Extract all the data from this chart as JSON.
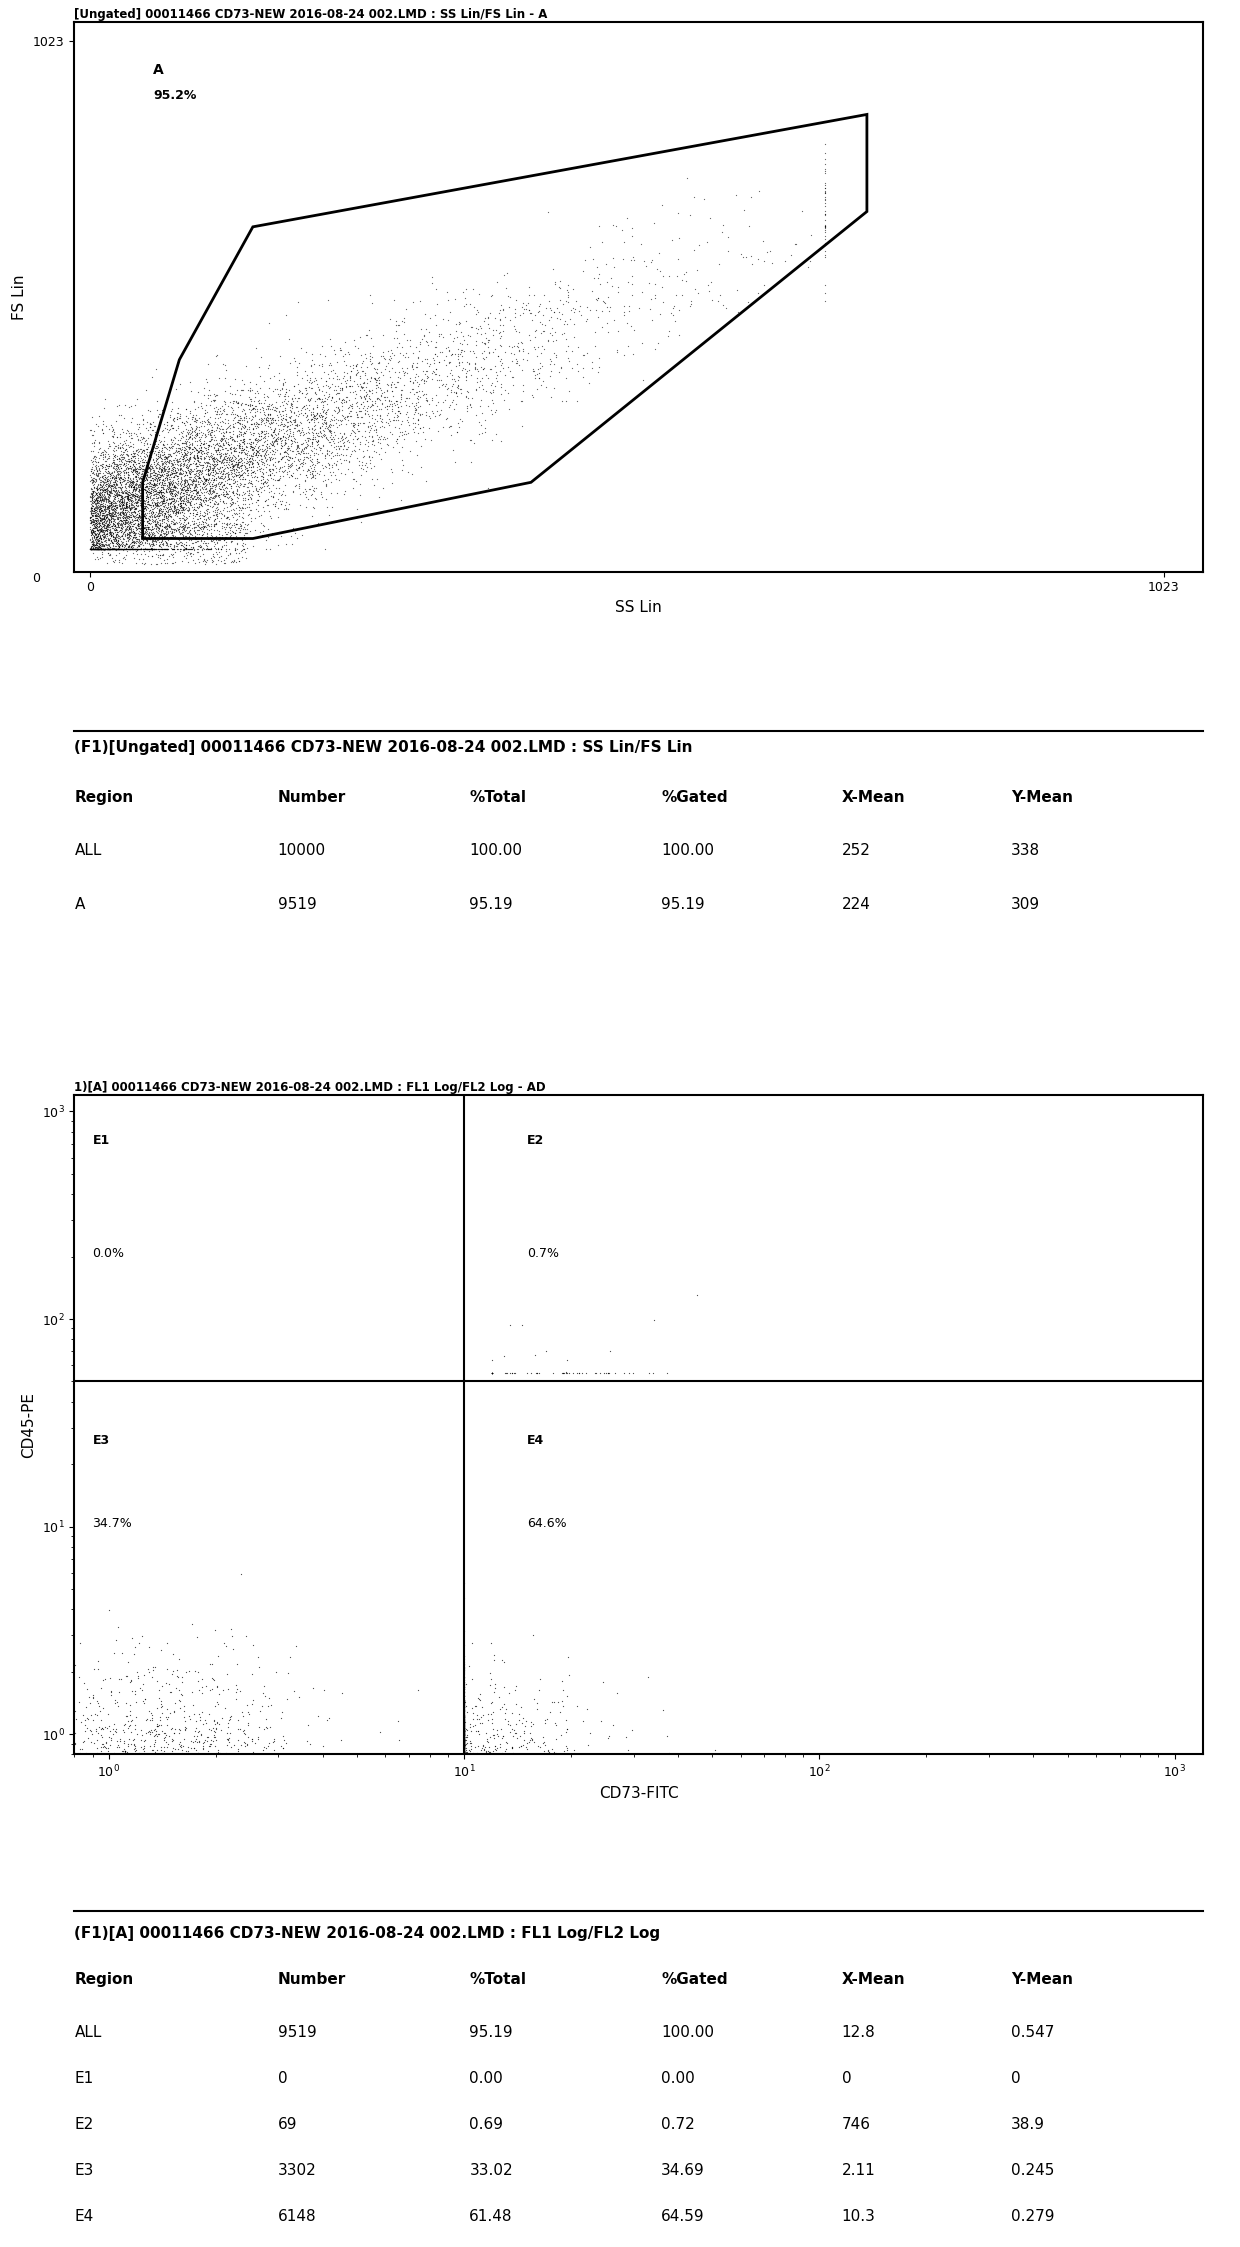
{
  "plot1_title": "[Ungated] 00011466 CD73-NEW 2016-08-24 002.LMD : SS Lin/FS Lin - A",
  "plot1_xlabel": "SS Lin",
  "plot1_ylabel": "FS Lin",
  "plot1_gate_label": "A",
  "plot1_gate_pct": "95.2%",
  "table1_title": "(F1)[Ungated] 00011466 CD73-NEW 2016-08-24 002.LMD : SS Lin/FS Lin",
  "table1_headers": [
    "Region",
    "Number",
    "%Total",
    "%Gated",
    "X-Mean",
    "Y-Mean"
  ],
  "table1_rows": [
    [
      "ALL",
      "10000",
      "100.00",
      "100.00",
      "252",
      "338"
    ],
    [
      "A",
      "9519",
      "95.19",
      "95.19",
      "224",
      "309"
    ]
  ],
  "plot2_title": "1)[A] 00011466 CD73-NEW 2016-08-24 002.LMD : FL1 Log/FL2 Log - AD",
  "plot2_xlabel": "CD73-FITC",
  "plot2_ylabel": "CD45-PE",
  "table2_title": "(F1)[A] 00011466 CD73-NEW 2016-08-24 002.LMD : FL1 Log/FL2 Log",
  "table2_headers": [
    "Region",
    "Number",
    "%Total",
    "%Gated",
    "X-Mean",
    "Y-Mean"
  ],
  "table2_rows": [
    [
      "ALL",
      "9519",
      "95.19",
      "100.00",
      "12.8",
      "0.547"
    ],
    [
      "E1",
      "0",
      "0.00",
      "0.00",
      "0",
      "0"
    ],
    [
      "E2",
      "69",
      "0.69",
      "0.72",
      "746",
      "38.9"
    ],
    [
      "E3",
      "3302",
      "33.02",
      "34.69",
      "2.11",
      "0.245"
    ],
    [
      "E4",
      "6148",
      "61.48",
      "64.59",
      "10.3",
      "0.279"
    ]
  ],
  "bg_color": "#ffffff",
  "scatter_color": "#000000",
  "gate_color": "#000000"
}
